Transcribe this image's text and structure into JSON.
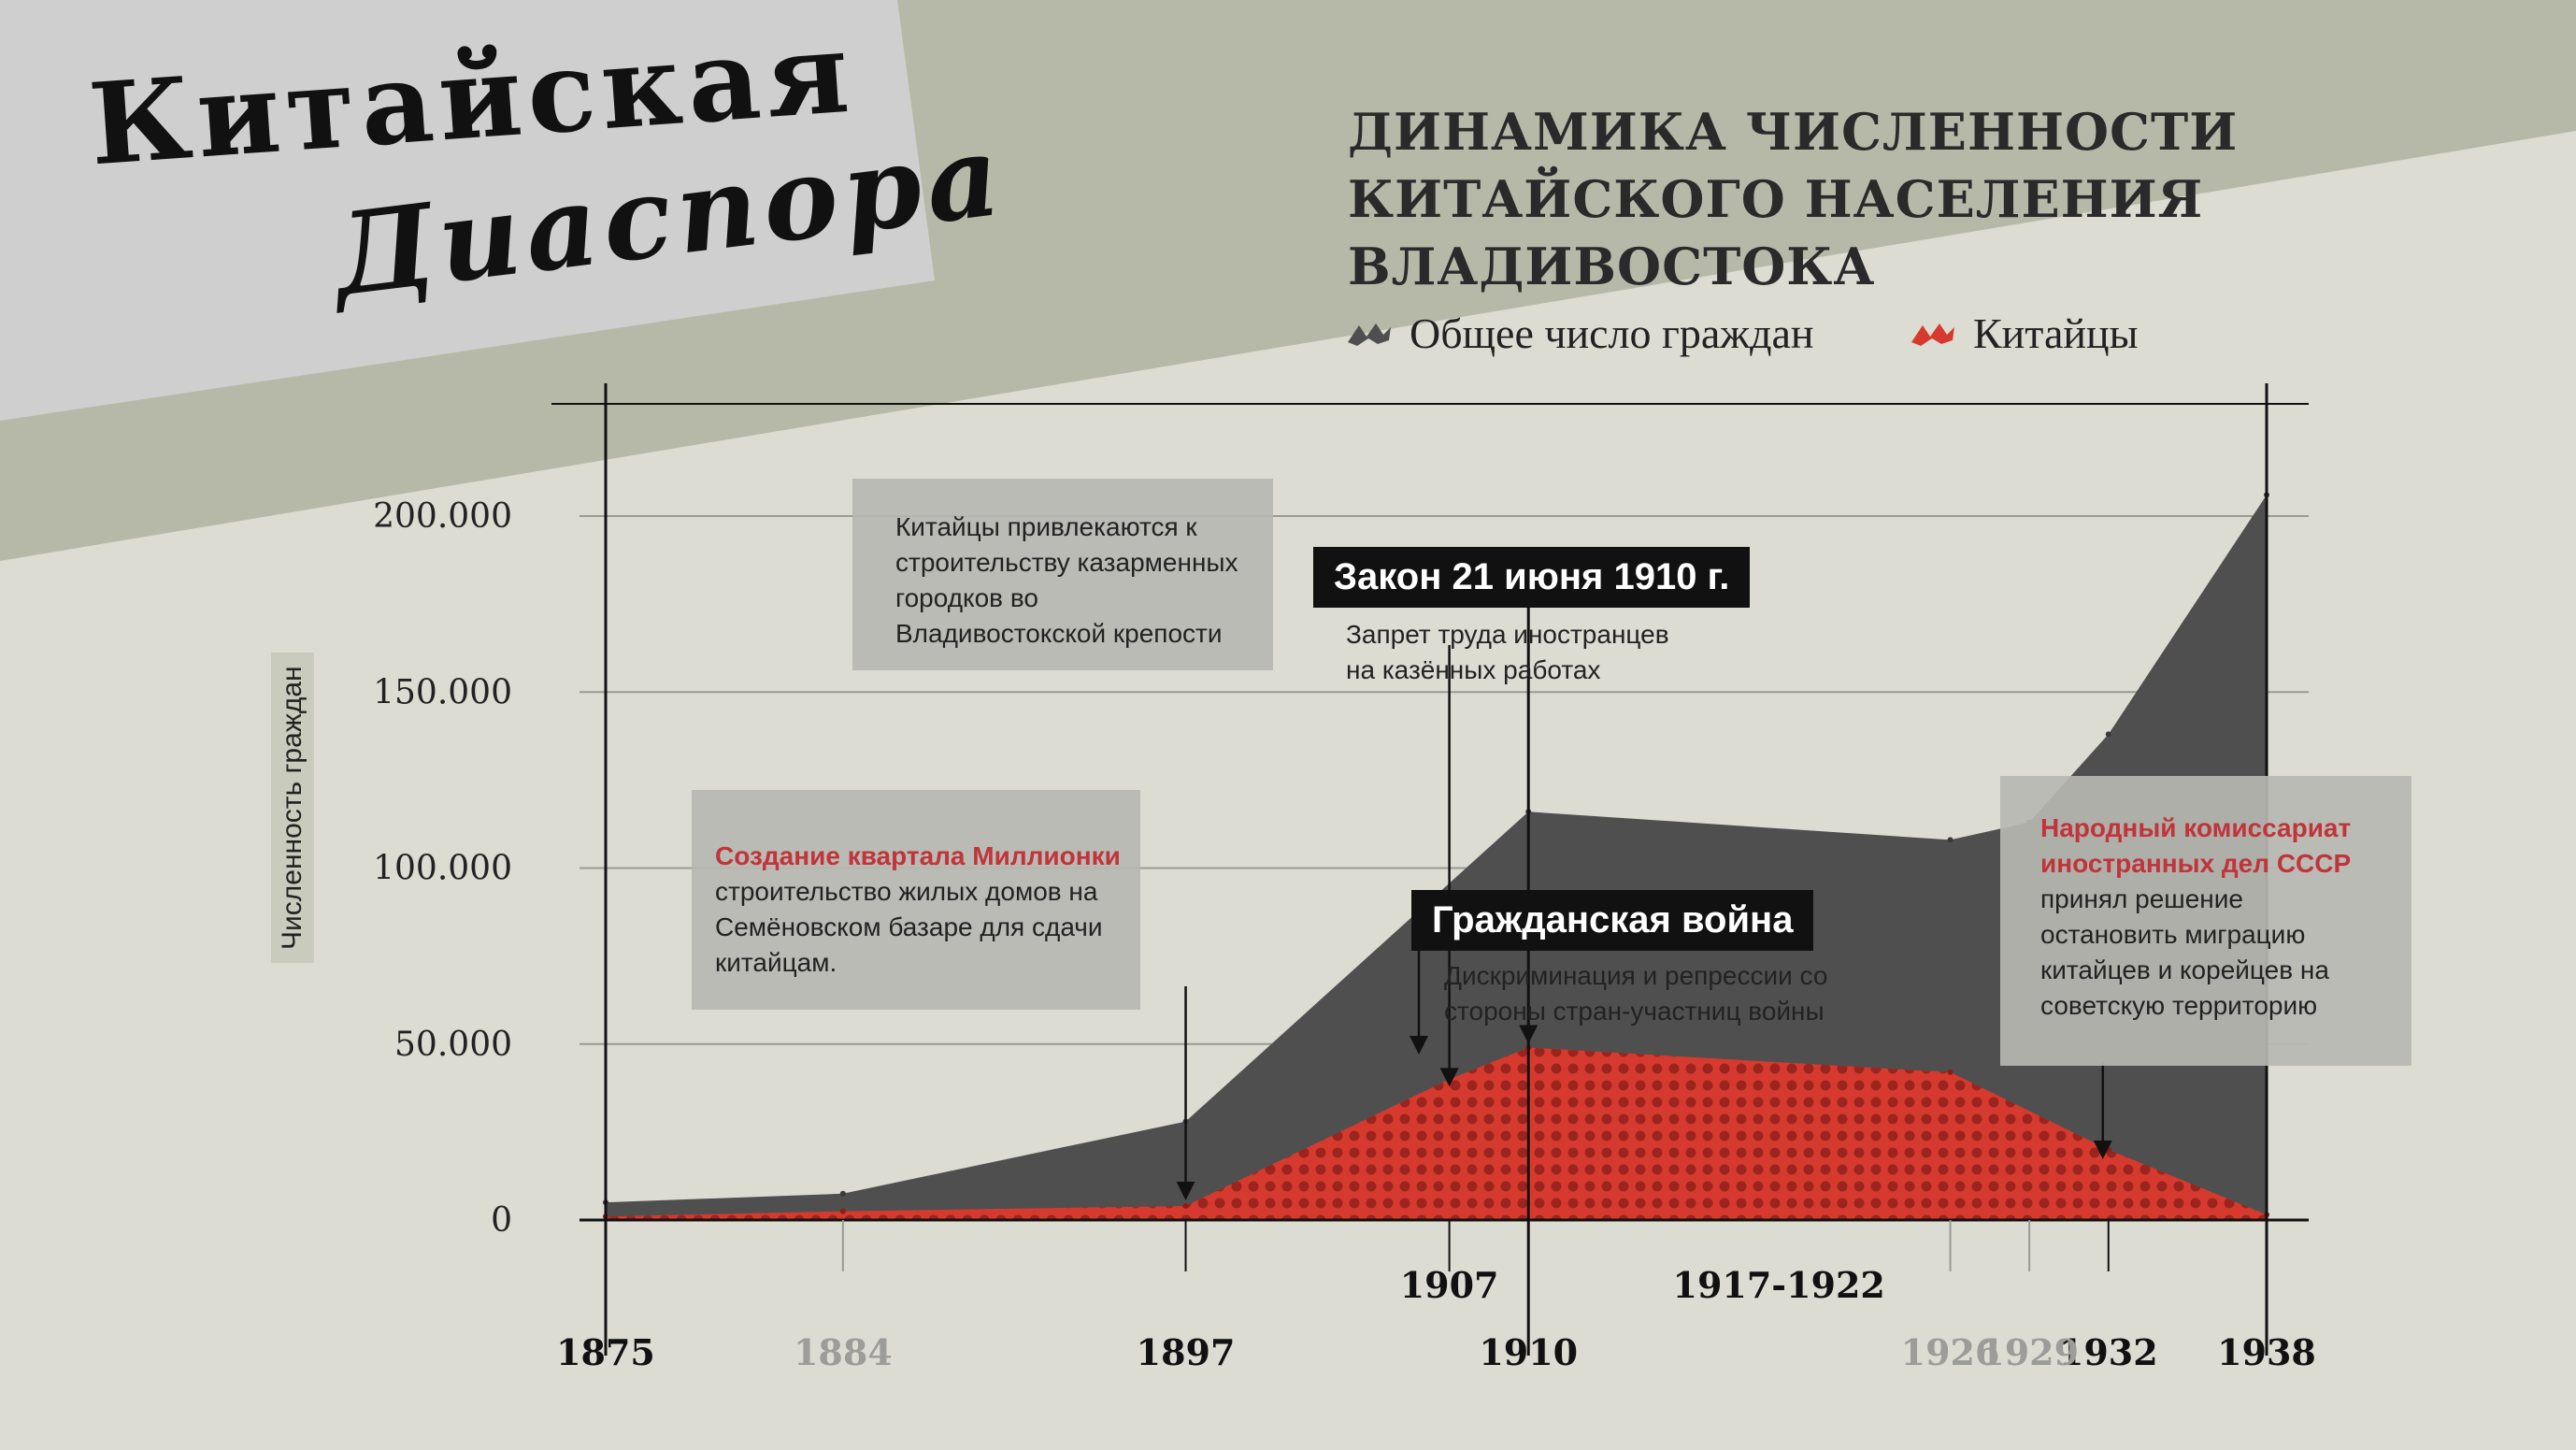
{
  "logo": {
    "line1": "Китайская",
    "line2": "Диаспора"
  },
  "title": "ДИНАМИКА ЧИСЛЕННОСТИ КИТАЙСКОГО НАСЕЛЕНИЯ ВЛАДИВОСТОКА",
  "legend": [
    {
      "label": "Общее число граждан",
      "color": "#4f4f4f"
    },
    {
      "label": "Китайцы",
      "color": "#d63a2e"
    }
  ],
  "colors": {
    "total": "#4f4f4f",
    "chinese": "#d63a2e",
    "background": "#dcdcd3",
    "accent_red": "#c0343a"
  },
  "notes": {
    "n1907": "Китайцы привлекаются к строительству казарменных городков во Владивостокской крепости",
    "n1910_title": "Закон 21 июня 1910 г.",
    "n1910_text": "Запрет труда иностранцев на казённых работах",
    "n1897_title": "Создание квартала Миллионки",
    "n1897_text": "строительство жилых домов на Семёновском базаре для сдачи китайцам.",
    "war_title": "Гражданская война",
    "war_text": "Дискриминация и репрессии со стороны стран-участниц войны",
    "n1932_title": "Народный комиссариат иностранных дел СССР",
    "n1932_text": "принял решение остановить миграцию китайцев и корейцев на советскую территорию"
  },
  "chart_data": {
    "type": "area",
    "ylabel": "Численность граждан",
    "xlabel": "",
    "ylim": [
      0,
      200000
    ],
    "yticks": [
      "0",
      "50.000",
      "100.000",
      "150.000",
      "200.000"
    ],
    "x_ticks_bold": [
      "1875",
      "1897",
      "1910",
      "1932",
      "1938"
    ],
    "x_ticks_faded": [
      "1884",
      "1926",
      "1929"
    ],
    "x_ticks_event": [
      "1907",
      "1917-1922"
    ],
    "series": [
      {
        "name": "Общее число граждан",
        "points": [
          [
            1875,
            5000
          ],
          [
            1884,
            7500
          ],
          [
            1897,
            28000
          ],
          [
            1910,
            116000
          ],
          [
            1926,
            108000
          ],
          [
            1929,
            113000
          ],
          [
            1932,
            138000
          ],
          [
            1938,
            206000
          ]
        ]
      },
      {
        "name": "Китайцы",
        "points": [
          [
            1875,
            1000
          ],
          [
            1884,
            2500
          ],
          [
            1897,
            4000
          ],
          [
            1907,
            40000
          ],
          [
            1910,
            49000
          ],
          [
            1926,
            42000
          ],
          [
            1932,
            20000
          ],
          [
            1938,
            1500
          ]
        ]
      }
    ]
  }
}
